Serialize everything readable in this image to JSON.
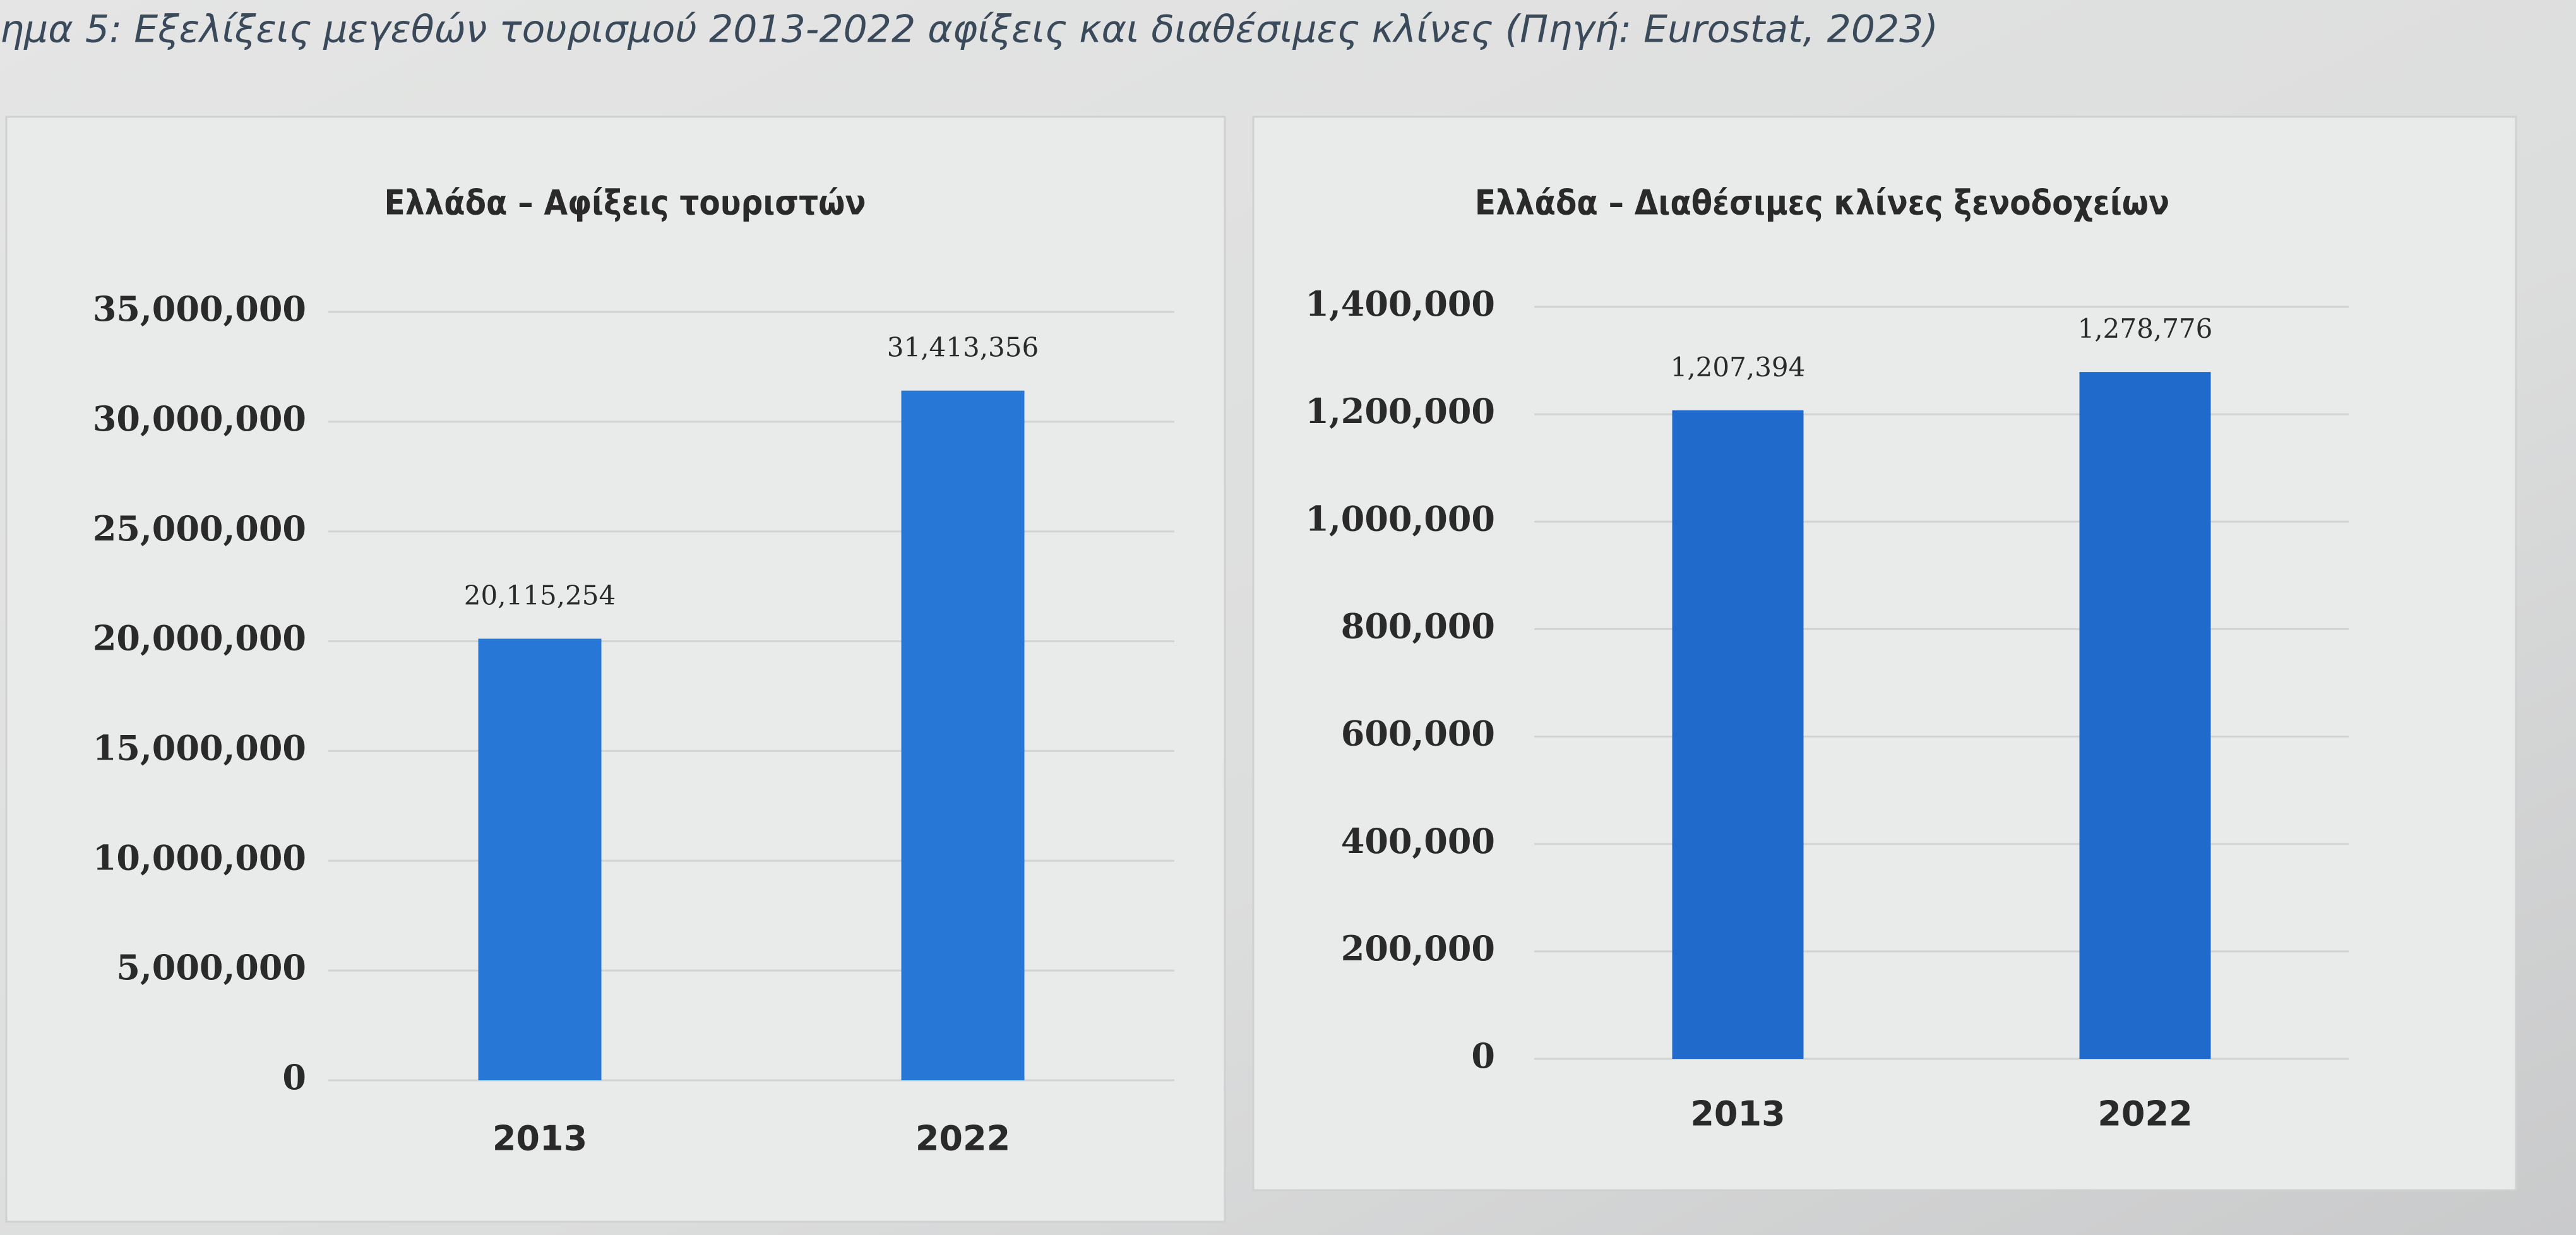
{
  "caption": "ημα 5: Εξελίξεις μεγεθών τουρισμού 2013-2022 αφίξεις και διαθέσιμες κλίνες (Πηγή: Eurostat, 2023)",
  "chart_data": [
    {
      "type": "bar",
      "title": "Ελλάδα – Αφίξεις τουριστών",
      "categories": [
        "2013",
        "2022"
      ],
      "values": [
        20115254,
        31413356
      ],
      "value_labels": [
        "20,115,254",
        "31,413,356"
      ],
      "color": "#2677d6",
      "ylim": [
        0,
        35000000
      ],
      "yticks": [
        0,
        {
          "value": 5000000,
          "label": "5,000,000"
        },
        {
          "value": 10000000,
          "label": "10,000,000"
        },
        {
          "value": 15000000,
          "label": "15,000,000"
        },
        {
          "value": 20000000,
          "label": "20,000,000"
        },
        {
          "value": 25000000,
          "label": "25,000,000"
        },
        {
          "value": 30000000,
          "label": "30,000,000"
        },
        {
          "value": 35000000,
          "label": "35,000,000"
        }
      ],
      "grid": true
    },
    {
      "type": "bar",
      "title": "Ελλάδα – Διαθέσιμες κλίνες ξενοδοχείων",
      "categories": [
        "2013",
        "2022"
      ],
      "values": [
        1207394,
        1278776
      ],
      "value_labels": [
        "1,207,394",
        "1,278,776"
      ],
      "color": "#1f6acb",
      "ylim": [
        0,
        1400000
      ],
      "yticks": [
        0,
        {
          "value": 200000,
          "label": "200,000"
        },
        {
          "value": 400000,
          "label": "400,000"
        },
        {
          "value": 600000,
          "label": "600,000"
        },
        {
          "value": 800000,
          "label": "800,000"
        },
        {
          "value": 1000000,
          "label": "1,000,000"
        },
        {
          "value": 1200000,
          "label": "1,200,000"
        },
        {
          "value": 1400000,
          "label": "1,400,000"
        }
      ],
      "grid": true
    }
  ]
}
